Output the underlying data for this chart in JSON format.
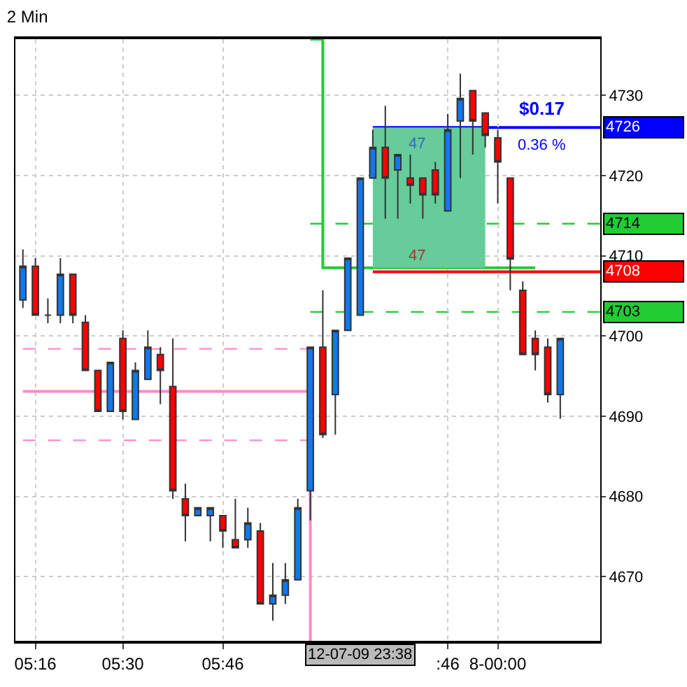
{
  "chart_data": {
    "type": "candlestick",
    "title": "2 Min",
    "categories": [
      null,
      "05:16",
      null,
      null,
      null,
      null,
      null,
      null,
      "05:30",
      null,
      null,
      null,
      null,
      null,
      null,
      null,
      "05:46",
      null,
      null,
      null,
      null,
      null,
      null,
      null,
      null,
      null,
      null,
      null,
      null,
      null,
      null,
      null,
      null,
      null,
      ":46",
      null,
      null,
      null,
      "8-00:00",
      null,
      null,
      null,
      null,
      null
    ],
    "ohlc": [
      [
        4704.5,
        4710.8,
        4703.5,
        4708.7
      ],
      [
        4708.7,
        4709.7,
        4702.6,
        4702.6
      ],
      [
        4702.6,
        4704.7,
        4701.6,
        4702.6
      ],
      [
        4702.6,
        4709.7,
        4701.6,
        4707.7
      ],
      [
        4707.7,
        4707.7,
        4701.6,
        4702.6
      ],
      [
        4701.7,
        4702.6,
        4695.7,
        4695.7
      ],
      [
        4695.7,
        4695.7,
        4690.6,
        4690.6
      ],
      [
        4690.6,
        4696.7,
        4690.6,
        4696.7
      ],
      [
        4699.7,
        4700.7,
        4689.6,
        4690.6
      ],
      [
        4689.6,
        4696.7,
        4689.6,
        4695.7
      ],
      [
        4694.6,
        4700.7,
        4694.6,
        4698.6
      ],
      [
        4697.7,
        4698.6,
        4691.5,
        4695.7
      ],
      [
        4693.7,
        4699.7,
        4679.7,
        4680.7
      ],
      [
        4679.7,
        4681.6,
        4674.4,
        4677.6
      ],
      [
        4677.6,
        4678.6,
        4677.6,
        4678.6
      ],
      [
        4677.6,
        4678.6,
        4674.4,
        4678.6
      ],
      [
        4677.6,
        4677.6,
        4673.6,
        4675.7
      ],
      [
        4674.6,
        4679.7,
        4673.6,
        4673.6
      ],
      [
        4674.6,
        4678.6,
        4673.6,
        4676.7
      ],
      [
        4675.7,
        4676.7,
        4666.6,
        4666.6
      ],
      [
        4666.6,
        4671.7,
        4664.5,
        4667.7
      ],
      [
        4667.7,
        4671.7,
        4666.6,
        4669.6
      ],
      [
        4669.6,
        4679.7,
        4669.6,
        4678.6
      ],
      [
        4680.7,
        4698.6,
        4677.0,
        4698.6
      ],
      [
        4698.6,
        4705.7,
        4687.3,
        4687.7
      ],
      [
        4692.7,
        4700.7,
        4687.7,
        4700.7
      ],
      [
        4700.7,
        4709.7,
        4700.7,
        4709.7
      ],
      [
        4702.6,
        4719.7,
        4702.6,
        4719.7
      ],
      [
        4719.7,
        4725.7,
        4719.7,
        4723.5
      ],
      [
        4723.5,
        4728.7,
        4714.6,
        4719.7
      ],
      [
        4720.7,
        4722.6,
        4714.6,
        4722.6
      ],
      [
        4719.7,
        4722.6,
        4716.5,
        4718.8
      ],
      [
        4719.7,
        4719.7,
        4714.6,
        4717.6
      ],
      [
        4720.7,
        4721.7,
        4716.5,
        4717.6
      ],
      [
        4715.6,
        4727.7,
        4715.6,
        4725.7
      ],
      [
        4726.8,
        4732.7,
        4719.7,
        4729.6
      ],
      [
        4730.6,
        4730.6,
        4722.6,
        4726.8
      ],
      [
        4727.8,
        4727.8,
        4723.5,
        4725.0
      ],
      [
        4724.7,
        4725.7,
        4716.5,
        4721.7
      ],
      [
        4719.7,
        4719.7,
        4705.7,
        4709.6
      ],
      [
        4705.7,
        4706.8,
        4697.7,
        4697.7
      ],
      [
        4699.7,
        4700.7,
        4695.7,
        4697.7
      ],
      [
        4698.6,
        4699.7,
        4691.7,
        4692.7
      ],
      [
        4692.7,
        4699.7,
        4689.7,
        4699.7
      ]
    ],
    "colors": [
      "#1177ee",
      "#ff0000",
      "#333333",
      "#1177ee",
      "#ff0000",
      "#ff0000",
      "#ff0000",
      "#1177ee",
      "#ff0000",
      "#1177ee",
      "#1177ee",
      "#ff0000",
      "#ff0000",
      "#ff0000",
      "#1177ee",
      "#1177ee",
      "#ff0000",
      "#ff0000",
      "#1177ee",
      "#ff0000",
      "#1177ee",
      "#1177ee",
      "#1177ee",
      "#1177ee",
      "#ff0000",
      "#1177ee",
      "#1177ee",
      "#1177ee",
      "#1177ee",
      "#ff0000",
      "#1177ee",
      "#ff0000",
      "#ff0000",
      "#ff0000",
      "#1177ee",
      "#1177ee",
      "#ff0000",
      "#ff0000",
      "#ff0000",
      "#ff0000",
      "#ff0000",
      "#ff0000",
      "#ff0000",
      "#1177ee"
    ],
    "series": [
      {
        "type": "step",
        "color": "#ff88cc",
        "values": [
          4693.1,
          4693.1,
          4693.1,
          4693.1,
          4693.1,
          4693.1,
          4693.1,
          4693.1,
          4693.1,
          4693.1,
          4693.1,
          4693.1,
          4693.1,
          4693.1,
          4693.1,
          4693.1,
          4693.1,
          4693.1,
          4693.1,
          4693.1,
          4693.1,
          4693.1,
          4693.1,
          4662,
          null,
          null,
          null,
          null,
          null,
          null,
          null,
          null,
          null,
          null,
          null,
          null,
          null,
          null,
          null,
          null,
          null,
          null,
          null,
          null
        ]
      },
      {
        "type": "line",
        "line_style": "dashed",
        "color": "#ff88cc",
        "values": [
          4698.4,
          4698.4,
          4698.4,
          4698.4,
          4698.4,
          4698.4,
          4698.4,
          4698.4,
          4698.4,
          4698.4,
          4698.4,
          4698.4,
          4698.4,
          4698.4,
          4698.4,
          4698.4,
          4698.4,
          4698.4,
          4698.4,
          4698.4,
          4698.4,
          4698.4,
          4698.4,
          4698.4,
          null,
          null,
          null,
          null,
          null,
          null,
          null,
          null,
          null,
          null,
          null,
          null,
          null,
          null,
          null,
          null,
          null,
          null,
          null,
          null
        ]
      },
      {
        "type": "line",
        "line_style": "dashed",
        "color": "#ff88cc",
        "values": [
          4687.0,
          4687.0,
          4687.0,
          4687.0,
          4687.0,
          4687.0,
          4687.0,
          4687.0,
          4687.0,
          4687.0,
          4687.0,
          4687.0,
          4687.0,
          4687.0,
          4687.0,
          4687.0,
          4687.0,
          4687.0,
          4687.0,
          4687.0,
          4687.0,
          4687.0,
          4687.0,
          4687.0,
          null,
          null,
          null,
          null,
          null,
          null,
          null,
          null,
          null,
          null,
          null,
          null,
          null,
          null,
          null,
          null,
          null,
          null,
          null,
          null
        ]
      },
      {
        "type": "step",
        "color": "#22cc33",
        "values": [
          null,
          null,
          null,
          null,
          null,
          null,
          null,
          null,
          null,
          null,
          null,
          null,
          null,
          null,
          null,
          null,
          null,
          null,
          null,
          null,
          null,
          null,
          null,
          4737,
          4708.5,
          4708.5,
          4708.5,
          4708.5,
          4708.5,
          4708.5,
          4708.5,
          4708.5,
          4708.5,
          4708.5,
          4708.5,
          4708.5,
          4708.5,
          4708.5,
          4708.5,
          4708.5,
          4708.5,
          4708.5,
          null,
          null
        ]
      },
      {
        "type": "area",
        "color": "#66cc99",
        "values": [
          null,
          null,
          null,
          null,
          null,
          null,
          null,
          null,
          null,
          null,
          null,
          null,
          null,
          null,
          null,
          null,
          null,
          null,
          null,
          null,
          null,
          null,
          null,
          null,
          null,
          null,
          null,
          null,
          null,
          null,
          null,
          null,
          null,
          null,
          null,
          null,
          null,
          null,
          null,
          null,
          null,
          null,
          null,
          null
        ],
        "lower": [
          null,
          null,
          null,
          null,
          null,
          null,
          null,
          null,
          null,
          null,
          null,
          null,
          null,
          null,
          null,
          null,
          null,
          null,
          null,
          null,
          null,
          null,
          null,
          null,
          null,
          null,
          null,
          null,
          4708.5,
          4708.5,
          4708.5,
          4708.5,
          4708.5,
          4708.5,
          4708.5,
          4708.5,
          4708.5,
          4708.5,
          null,
          null,
          null,
          null,
          null,
          null
        ],
        "upper": [
          null,
          null,
          null,
          null,
          null,
          null,
          null,
          null,
          null,
          null,
          null,
          null,
          null,
          null,
          null,
          null,
          null,
          null,
          null,
          null,
          null,
          null,
          null,
          null,
          null,
          null,
          null,
          null,
          4726,
          4726,
          4726,
          4726,
          4726,
          4726,
          4726,
          4726,
          4726,
          4726,
          null,
          null,
          null,
          null,
          null,
          null
        ]
      }
    ],
    "ylim": [
      4662,
      4737
    ],
    "yticks": [
      4670,
      4680,
      4690,
      4700,
      4710,
      4720,
      4730
    ],
    "grid": true,
    "ref_lines": [
      {
        "axis": "y",
        "value": 4726,
        "label": "4726",
        "color": "#0000ff"
      },
      {
        "axis": "y",
        "value": 4714,
        "label": "4714",
        "color": "#22cc33",
        "line_style": "dashed"
      },
      {
        "axis": "y",
        "value": 4708,
        "label": "4708",
        "color": "#ff0000"
      },
      {
        "axis": "y",
        "value": 4703,
        "label": "4703",
        "color": "#22cc33",
        "line_style": "dashed"
      }
    ],
    "annotations": [
      "$0.17",
      "0.36 %",
      "47",
      "47",
      "12-07-09 23:38"
    ]
  }
}
